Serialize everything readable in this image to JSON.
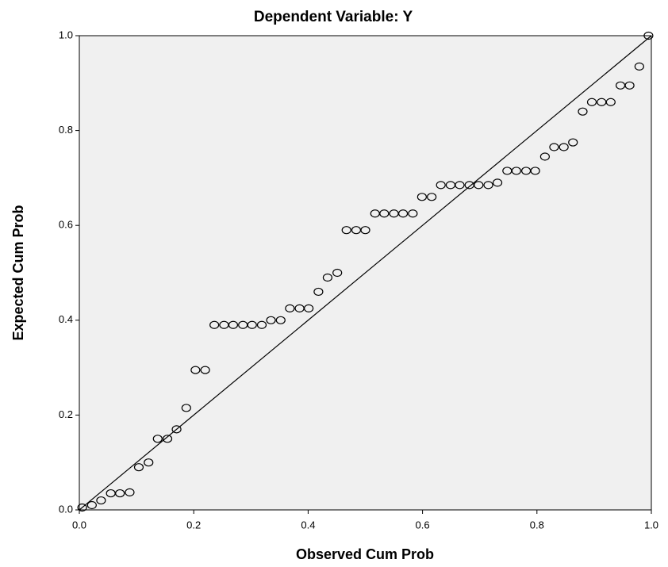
{
  "chart_data": {
    "type": "scatter",
    "title": "Dependent Variable: Y",
    "x_label": "Observed Cum Prob",
    "y_label": "Expected Cum Prob",
    "x": [
      0.005,
      0.022,
      0.038,
      0.055,
      0.071,
      0.088,
      0.104,
      0.121,
      0.137,
      0.154,
      0.17,
      0.187,
      0.203,
      0.22,
      0.236,
      0.253,
      0.269,
      0.286,
      0.302,
      0.319,
      0.335,
      0.352,
      0.368,
      0.385,
      0.401,
      0.418,
      0.434,
      0.451,
      0.467,
      0.484,
      0.5,
      0.517,
      0.533,
      0.55,
      0.566,
      0.583,
      0.599,
      0.616,
      0.632,
      0.649,
      0.665,
      0.682,
      0.698,
      0.715,
      0.731,
      0.748,
      0.764,
      0.781,
      0.797,
      0.814,
      0.83,
      0.847,
      0.863,
      0.88,
      0.896,
      0.913,
      0.929,
      0.946,
      0.962,
      0.979,
      0.995
    ],
    "values": [
      0.005,
      0.01,
      0.02,
      0.035,
      0.035,
      0.037,
      0.09,
      0.1,
      0.15,
      0.15,
      0.17,
      0.215,
      0.295,
      0.295,
      0.39,
      0.39,
      0.39,
      0.39,
      0.39,
      0.39,
      0.4,
      0.4,
      0.425,
      0.425,
      0.425,
      0.46,
      0.49,
      0.5,
      0.59,
      0.59,
      0.59,
      0.625,
      0.625,
      0.625,
      0.625,
      0.625,
      0.66,
      0.66,
      0.685,
      0.685,
      0.685,
      0.685,
      0.685,
      0.685,
      0.69,
      0.715,
      0.715,
      0.715,
      0.715,
      0.745,
      0.765,
      0.765,
      0.775,
      0.84,
      0.86,
      0.86,
      0.86,
      0.895,
      0.895,
      0.935,
      1.0
    ],
    "color": "#000000",
    "xlim": [
      0,
      1
    ],
    "ylim": [
      0,
      1
    ],
    "xticks": [
      {
        "value": 0,
        "label": "0.0"
      },
      0.2,
      0.4,
      0.6,
      0.8,
      {
        "value": 1,
        "label": "1.0"
      }
    ],
    "yticks": [
      {
        "value": 0,
        "label": "0.0"
      },
      0.2,
      0.4,
      0.6,
      0.8,
      {
        "value": 1,
        "label": "1.0"
      }
    ]
  }
}
